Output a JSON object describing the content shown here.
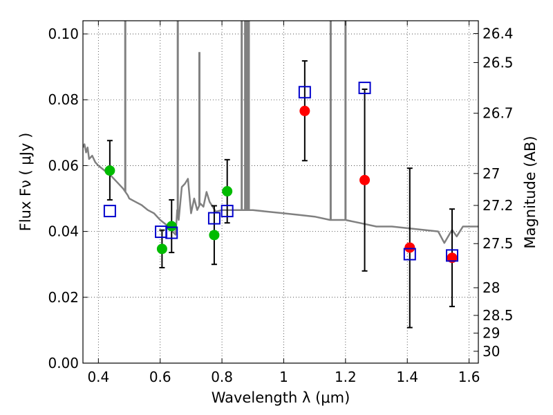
{
  "chart_data": {
    "type": "scatter",
    "title": "",
    "xlabel": "Wavelength  λ (μm)",
    "ylabel": "Flux  Fν  ( μJy )",
    "ylabel_right": "Magnitude (AB)",
    "xlim": [
      0.35,
      1.63
    ],
    "ylim": [
      0.0,
      0.104
    ],
    "grid": true,
    "x_ticks": [
      0.4,
      0.6,
      0.8,
      1.0,
      1.2,
      1.4,
      1.6
    ],
    "x_tick_labels": [
      "0.4",
      "0.6",
      "0.8",
      "1",
      "1.2",
      "1.4",
      "1.6"
    ],
    "y_ticks": [
      0.0,
      0.02,
      0.04,
      0.06,
      0.08,
      0.1
    ],
    "y_tick_labels": [
      "0.00",
      "0.02",
      "0.04",
      "0.06",
      "0.08",
      "0.10"
    ],
    "right_ticks": [
      {
        "label": "26.4",
        "flux": 0.1001
      },
      {
        "label": "26.5",
        "flux": 0.0913
      },
      {
        "label": "26.7",
        "flux": 0.0759
      },
      {
        "label": "27",
        "flux": 0.0576
      },
      {
        "label": "27.2",
        "flux": 0.0479
      },
      {
        "label": "27.5",
        "flux": 0.0363
      },
      {
        "label": "28",
        "flux": 0.0229
      },
      {
        "label": "28.5",
        "flux": 0.0145
      },
      {
        "label": "29",
        "flux": 0.0091
      },
      {
        "label": "30",
        "flux": 0.0036
      }
    ],
    "colors": {
      "model": "#808080",
      "green": "#00bb00",
      "red": "#ff0000",
      "square": "#0000cc",
      "errorbar": "#000000"
    },
    "series": [
      {
        "marker": "line",
        "color": "#808080",
        "points": [
          [
            0.35,
            0.0655
          ],
          [
            0.355,
            0.0665
          ],
          [
            0.36,
            0.064
          ],
          [
            0.365,
            0.0655
          ],
          [
            0.37,
            0.062
          ],
          [
            0.38,
            0.063
          ],
          [
            0.39,
            0.061
          ],
          [
            0.4,
            0.06
          ],
          [
            0.42,
            0.0585
          ],
          [
            0.44,
            0.057
          ],
          [
            0.46,
            0.055
          ],
          [
            0.48,
            0.053
          ],
          [
            0.495,
            0.051
          ],
          [
            0.5,
            0.05
          ],
          [
            0.52,
            0.049
          ],
          [
            0.54,
            0.048
          ],
          [
            0.56,
            0.0465
          ],
          [
            0.58,
            0.0455
          ],
          [
            0.6,
            0.0435
          ],
          [
            0.62,
            0.042
          ],
          [
            0.64,
            0.04
          ],
          [
            0.65,
            0.039
          ],
          [
            0.655,
            0.0465
          ],
          [
            0.66,
            0.0435
          ],
          [
            0.67,
            0.0535
          ],
          [
            0.68,
            0.0545
          ],
          [
            0.69,
            0.056
          ],
          [
            0.7,
            0.0455
          ],
          [
            0.71,
            0.05
          ],
          [
            0.72,
            0.0465
          ],
          [
            0.73,
            0.0485
          ],
          [
            0.74,
            0.0475
          ],
          [
            0.75,
            0.052
          ],
          [
            0.76,
            0.049
          ],
          [
            0.77,
            0.0475
          ],
          [
            0.78,
            0.046
          ],
          [
            0.8,
            0.0465
          ],
          [
            0.82,
            0.0465
          ],
          [
            0.85,
            0.0465
          ],
          [
            0.9,
            0.0465
          ],
          [
            0.95,
            0.046
          ],
          [
            1.0,
            0.0455
          ],
          [
            1.05,
            0.045
          ],
          [
            1.1,
            0.0445
          ],
          [
            1.15,
            0.0435
          ],
          [
            1.2,
            0.0435
          ],
          [
            1.25,
            0.0425
          ],
          [
            1.3,
            0.0415
          ],
          [
            1.35,
            0.0415
          ],
          [
            1.4,
            0.041
          ],
          [
            1.45,
            0.0405
          ],
          [
            1.5,
            0.04
          ],
          [
            1.52,
            0.0365
          ],
          [
            1.545,
            0.0405
          ],
          [
            1.56,
            0.0385
          ],
          [
            1.58,
            0.0415
          ],
          [
            1.6,
            0.0415
          ],
          [
            1.63,
            0.0415
          ]
        ],
        "spikes": [
          {
            "x": 0.487,
            "top": 0.104
          },
          {
            "x": 0.657,
            "top": 0.104
          },
          {
            "x": 0.727,
            "top": 0.0945
          },
          {
            "x": 0.864,
            "top": 0.104
          },
          {
            "x": 0.875,
            "top": 0.104
          },
          {
            "x": 0.881,
            "top": 0.104
          },
          {
            "x": 0.887,
            "top": 0.104
          },
          {
            "x": 1.152,
            "top": 0.104
          },
          {
            "x": 1.2,
            "top": 0.104
          }
        ]
      },
      {
        "marker": "circle",
        "color": "#00bb00",
        "points": [
          {
            "x": 0.437,
            "y": 0.0585,
            "lo": 0.0496,
            "hi": 0.0676
          },
          {
            "x": 0.606,
            "y": 0.0347,
            "lo": 0.029,
            "hi": 0.0404
          },
          {
            "x": 0.637,
            "y": 0.0416,
            "lo": 0.0336,
            "hi": 0.0496
          },
          {
            "x": 0.775,
            "y": 0.0389,
            "lo": 0.03,
            "hi": 0.0478
          },
          {
            "x": 0.817,
            "y": 0.0522,
            "lo": 0.0426,
            "hi": 0.0618
          }
        ]
      },
      {
        "marker": "circle",
        "color": "#ff0000",
        "points": [
          {
            "x": 1.068,
            "y": 0.0766,
            "lo": 0.0615,
            "hi": 0.0918
          },
          {
            "x": 1.262,
            "y": 0.0556,
            "lo": 0.028,
            "hi": 0.0832
          },
          {
            "x": 1.408,
            "y": 0.0351,
            "lo": 0.0108,
            "hi": 0.0592
          },
          {
            "x": 1.545,
            "y": 0.032,
            "lo": 0.0172,
            "hi": 0.0468
          }
        ]
      },
      {
        "marker": "square",
        "color": "#0000cc",
        "points": [
          {
            "x": 0.437,
            "y": 0.0462
          },
          {
            "x": 0.603,
            "y": 0.0399
          },
          {
            "x": 0.637,
            "y": 0.0396
          },
          {
            "x": 0.775,
            "y": 0.044
          },
          {
            "x": 0.817,
            "y": 0.0462
          },
          {
            "x": 1.068,
            "y": 0.0823
          },
          {
            "x": 1.262,
            "y": 0.0836
          },
          {
            "x": 1.408,
            "y": 0.0331
          },
          {
            "x": 1.545,
            "y": 0.0327
          }
        ]
      }
    ]
  }
}
